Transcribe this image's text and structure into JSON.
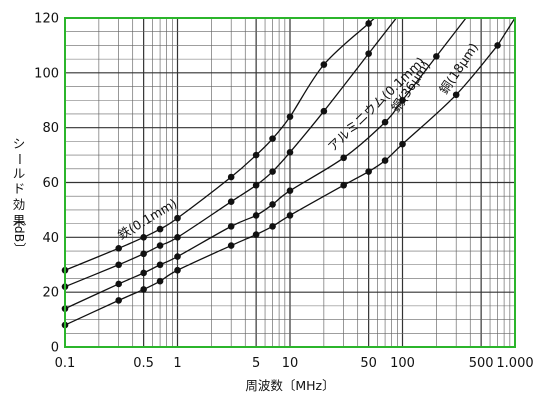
{
  "chart_data": {
    "type": "line",
    "title": "",
    "xlabel": "周波数〔MHz〕",
    "ylabel": [
      "シ",
      "ー",
      "ル",
      "ド",
      "効",
      "果"
    ],
    "yunit": "〔dB〕",
    "x_scale": "log",
    "xlim": [
      0.1,
      1000
    ],
    "ylim": [
      0,
      120
    ],
    "x_ticks": [
      {
        "value": 0.1,
        "label": "0.1"
      },
      {
        "value": 0.5,
        "label": "0.5"
      },
      {
        "value": 1,
        "label": "1"
      },
      {
        "value": 5,
        "label": "5"
      },
      {
        "value": 10,
        "label": "10"
      },
      {
        "value": 50,
        "label": "50"
      },
      {
        "value": 100,
        "label": "100"
      },
      {
        "value": 500,
        "label": "500"
      },
      {
        "value": 1000,
        "label": "1.000"
      }
    ],
    "y_ticks": [
      0,
      20,
      40,
      60,
      80,
      100,
      120
    ],
    "grid": true,
    "frame_color": "#2bb52b",
    "series": [
      {
        "name": "鉄(0.1mm)",
        "x": [
          0.1,
          0.3,
          0.5,
          0.7,
          1,
          3,
          5,
          7,
          10,
          20,
          50
        ],
        "y": [
          28,
          36,
          40,
          43,
          47,
          62,
          70,
          76,
          84,
          103,
          118
        ]
      },
      {
        "name": "アルミニウム(0.1mm)",
        "x": [
          0.1,
          0.3,
          0.5,
          0.7,
          1,
          3,
          5,
          7,
          10,
          20,
          50
        ],
        "y": [
          22,
          30,
          34,
          37,
          40,
          53,
          59,
          64,
          71,
          86,
          107
        ]
      },
      {
        "name": "銅(36μm)",
        "x": [
          0.1,
          0.3,
          0.5,
          0.7,
          1,
          3,
          5,
          7,
          10,
          30,
          70,
          100,
          200
        ],
        "y": [
          14,
          23,
          27,
          30,
          33,
          44,
          48,
          52,
          57,
          69,
          82,
          90,
          106
        ]
      },
      {
        "name": "銅(18μm)",
        "x": [
          0.1,
          0.3,
          0.5,
          0.7,
          1,
          3,
          5,
          7,
          10,
          30,
          50,
          70,
          100,
          300,
          700
        ],
        "y": [
          8,
          17,
          21,
          24,
          28,
          37,
          41,
          44,
          48,
          59,
          64,
          68,
          74,
          92,
          110
        ]
      }
    ]
  }
}
